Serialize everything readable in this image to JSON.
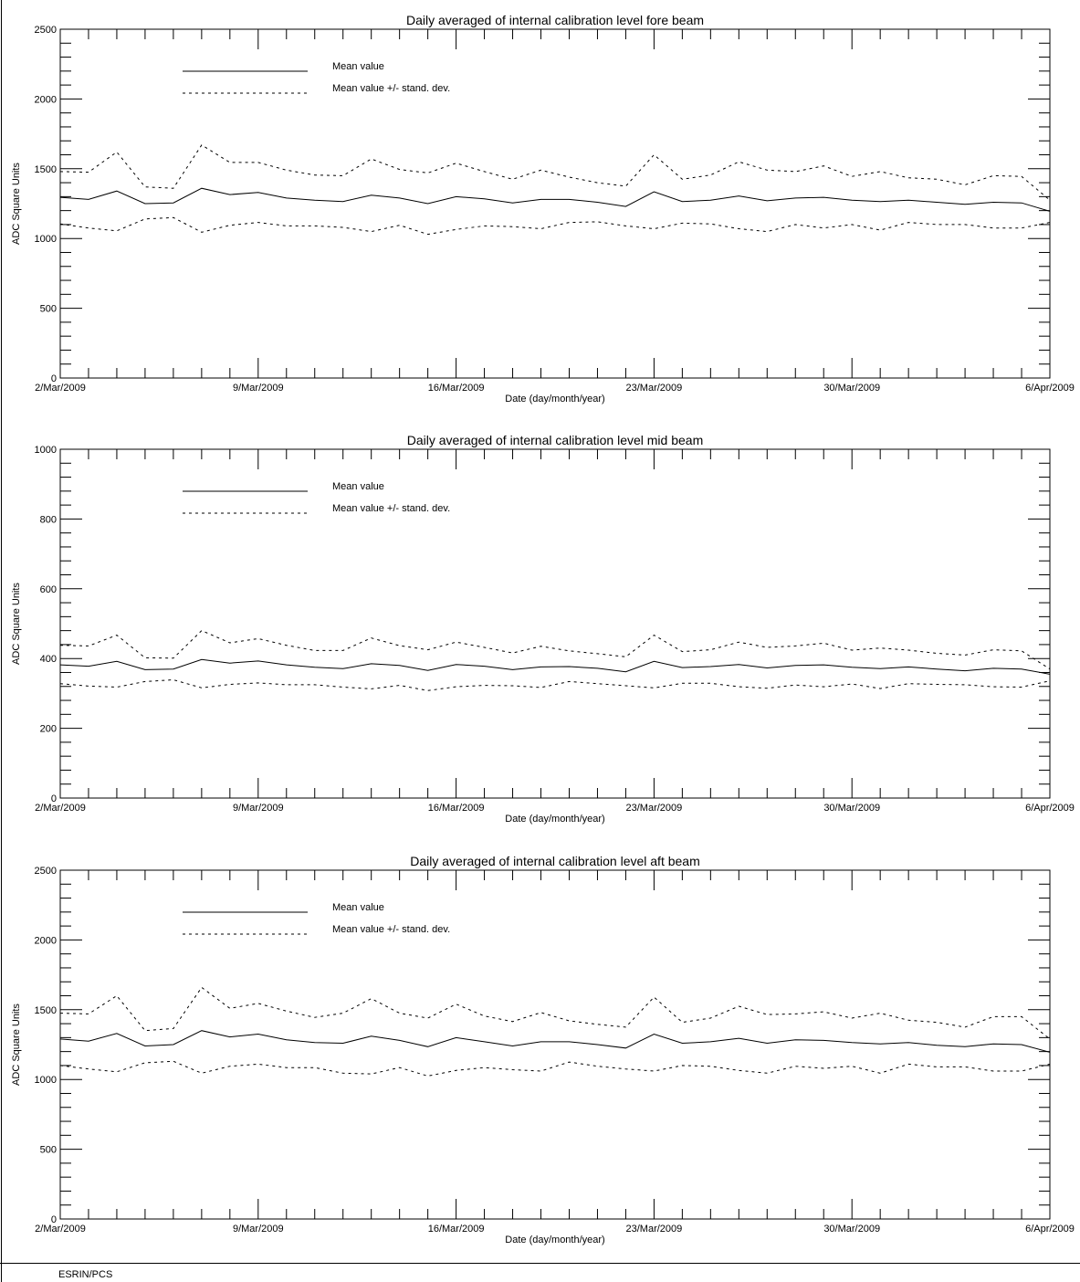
{
  "footer": {
    "label": "ESRIN/PCS"
  },
  "chart_data": [
    {
      "type": "line",
      "title": "Daily averaged of internal calibration level fore beam",
      "xlabel": "Date (day/month/year)",
      "ylabel": "ADC Square Units",
      "ylim": [
        0,
        2500
      ],
      "ytick_labels": [
        "0",
        "500",
        "1000",
        "1500",
        "2000",
        "2500"
      ],
      "xtick_labels": [
        "2/Mar/2009",
        "9/Mar/2009",
        "16/Mar/2009",
        "23/Mar/2009",
        "30/Mar/2009",
        "6/Apr/2009"
      ],
      "xlim": [
        "2009-03-02",
        "2009-04-06"
      ],
      "x": [
        "2009-03-02",
        "2009-03-03",
        "2009-03-04",
        "2009-03-05",
        "2009-03-06",
        "2009-03-07",
        "2009-03-08",
        "2009-03-09",
        "2009-03-10",
        "2009-03-11",
        "2009-03-12",
        "2009-03-13",
        "2009-03-14",
        "2009-03-15",
        "2009-03-16",
        "2009-03-17",
        "2009-03-18",
        "2009-03-19",
        "2009-03-20",
        "2009-03-21",
        "2009-03-22",
        "2009-03-23",
        "2009-03-24",
        "2009-03-25",
        "2009-03-26",
        "2009-03-27",
        "2009-03-28",
        "2009-03-29",
        "2009-03-30",
        "2009-03-31",
        "2009-04-01",
        "2009-04-02",
        "2009-04-03",
        "2009-04-04",
        "2009-04-05",
        "2009-04-06"
      ],
      "legend": {
        "position": "top-left"
      },
      "series": [
        {
          "name": "Mean value",
          "style": "solid",
          "values": [
            1295,
            1280,
            1340,
            1250,
            1255,
            1360,
            1315,
            1330,
            1290,
            1275,
            1265,
            1310,
            1290,
            1250,
            1300,
            1285,
            1255,
            1280,
            1280,
            1260,
            1230,
            1335,
            1265,
            1275,
            1305,
            1270,
            1290,
            1295,
            1275,
            1265,
            1275,
            1260,
            1245,
            1260,
            1255,
            1195
          ]
        },
        {
          "name": "Mean value +/- stand. dev.",
          "style": "dotted",
          "values": [
            1480,
            1475,
            1620,
            1370,
            1360,
            1670,
            1545,
            1545,
            1490,
            1455,
            1450,
            1570,
            1495,
            1470,
            1540,
            1480,
            1425,
            1490,
            1440,
            1400,
            1375,
            1600,
            1425,
            1455,
            1550,
            1490,
            1480,
            1520,
            1445,
            1480,
            1435,
            1425,
            1385,
            1450,
            1445,
            1275
          ]
        },
        {
          "name": "Mean value +/- stand. dev.",
          "style": "dotted",
          "values": [
            1105,
            1075,
            1055,
            1140,
            1150,
            1045,
            1095,
            1115,
            1090,
            1090,
            1080,
            1050,
            1095,
            1030,
            1065,
            1090,
            1085,
            1070,
            1115,
            1120,
            1090,
            1070,
            1110,
            1105,
            1070,
            1050,
            1100,
            1075,
            1100,
            1060,
            1115,
            1100,
            1100,
            1075,
            1075,
            1115
          ]
        }
      ]
    },
    {
      "type": "line",
      "title": "Daily averaged of internal calibration level mid beam",
      "xlabel": "Date (day/month/year)",
      "ylabel": "ADC Square Units",
      "ylim": [
        0,
        1000
      ],
      "ytick_labels": [
        "0",
        "200",
        "400",
        "600",
        "800",
        "1000"
      ],
      "xtick_labels": [
        "2/Mar/2009",
        "9/Mar/2009",
        "16/Mar/2009",
        "23/Mar/2009",
        "30/Mar/2009",
        "6/Apr/2009"
      ],
      "xlim": [
        "2009-03-02",
        "2009-04-06"
      ],
      "x": [
        "2009-03-02",
        "2009-03-03",
        "2009-03-04",
        "2009-03-05",
        "2009-03-06",
        "2009-03-07",
        "2009-03-08",
        "2009-03-09",
        "2009-03-10",
        "2009-03-11",
        "2009-03-12",
        "2009-03-13",
        "2009-03-14",
        "2009-03-15",
        "2009-03-16",
        "2009-03-17",
        "2009-03-18",
        "2009-03-19",
        "2009-03-20",
        "2009-03-21",
        "2009-03-22",
        "2009-03-23",
        "2009-03-24",
        "2009-03-25",
        "2009-03-26",
        "2009-03-27",
        "2009-03-28",
        "2009-03-29",
        "2009-03-30",
        "2009-03-31",
        "2009-04-01",
        "2009-04-02",
        "2009-04-03",
        "2009-04-04",
        "2009-04-05",
        "2009-04-06"
      ],
      "legend": {
        "position": "top-left"
      },
      "series": [
        {
          "name": "Mean value",
          "style": "solid",
          "values": [
            382,
            378,
            392,
            368,
            370,
            397,
            387,
            393,
            382,
            375,
            371,
            385,
            380,
            366,
            383,
            378,
            368,
            376,
            377,
            372,
            362,
            392,
            374,
            377,
            383,
            373,
            380,
            382,
            375,
            371,
            376,
            370,
            365,
            372,
            370,
            355
          ]
        },
        {
          "name": "Mean value +/- stand. dev.",
          "style": "dotted",
          "values": [
            438,
            436,
            467,
            402,
            401,
            480,
            445,
            457,
            438,
            423,
            423,
            459,
            437,
            425,
            447,
            432,
            416,
            435,
            422,
            414,
            405,
            467,
            420,
            425,
            447,
            432,
            436,
            444,
            424,
            430,
            424,
            415,
            410,
            425,
            422,
            370
          ]
        },
        {
          "name": "Mean value +/- stand. dev.",
          "style": "dotted",
          "values": [
            328,
            321,
            318,
            334,
            339,
            316,
            326,
            330,
            325,
            325,
            318,
            313,
            323,
            308,
            319,
            323,
            322,
            317,
            334,
            328,
            322,
            316,
            329,
            329,
            319,
            315,
            324,
            319,
            327,
            314,
            328,
            326,
            325,
            319,
            318,
            336
          ]
        }
      ]
    },
    {
      "type": "line",
      "title": "Daily averaged of internal calibration level aft beam",
      "xlabel": "Date (day/month/year)",
      "ylabel": "ADC Square Units",
      "ylim": [
        0,
        2500
      ],
      "ytick_labels": [
        "0",
        "500",
        "1000",
        "1500",
        "2000",
        "2500"
      ],
      "xtick_labels": [
        "2/Mar/2009",
        "9/Mar/2009",
        "16/Mar/2009",
        "23/Mar/2009",
        "30/Mar/2009",
        "6/Apr/2009"
      ],
      "xlim": [
        "2009-03-02",
        "2009-04-06"
      ],
      "x": [
        "2009-03-02",
        "2009-03-03",
        "2009-03-04",
        "2009-03-05",
        "2009-03-06",
        "2009-03-07",
        "2009-03-08",
        "2009-03-09",
        "2009-03-10",
        "2009-03-11",
        "2009-03-12",
        "2009-03-13",
        "2009-03-14",
        "2009-03-15",
        "2009-03-16",
        "2009-03-17",
        "2009-03-18",
        "2009-03-19",
        "2009-03-20",
        "2009-03-21",
        "2009-03-22",
        "2009-03-23",
        "2009-03-24",
        "2009-03-25",
        "2009-03-26",
        "2009-03-27",
        "2009-03-28",
        "2009-03-29",
        "2009-03-30",
        "2009-03-31",
        "2009-04-01",
        "2009-04-02",
        "2009-04-03",
        "2009-04-04",
        "2009-04-05",
        "2009-04-06"
      ],
      "legend": {
        "position": "top-left"
      },
      "series": [
        {
          "name": "Mean value",
          "style": "solid",
          "values": [
            1290,
            1275,
            1330,
            1240,
            1250,
            1350,
            1305,
            1325,
            1285,
            1265,
            1260,
            1310,
            1280,
            1235,
            1300,
            1270,
            1240,
            1270,
            1270,
            1250,
            1225,
            1325,
            1260,
            1270,
            1295,
            1260,
            1285,
            1280,
            1265,
            1255,
            1265,
            1245,
            1235,
            1255,
            1250,
            1195
          ]
        },
        {
          "name": "Mean value +/- stand. dev.",
          "style": "dotted",
          "values": [
            1475,
            1470,
            1600,
            1350,
            1365,
            1660,
            1510,
            1545,
            1490,
            1445,
            1475,
            1580,
            1475,
            1440,
            1540,
            1455,
            1415,
            1480,
            1420,
            1395,
            1375,
            1590,
            1410,
            1440,
            1525,
            1465,
            1470,
            1485,
            1440,
            1475,
            1425,
            1410,
            1375,
            1450,
            1450,
            1290
          ]
        },
        {
          "name": "Mean value +/- stand. dev.",
          "style": "dotted",
          "values": [
            1100,
            1075,
            1055,
            1120,
            1130,
            1045,
            1095,
            1110,
            1085,
            1085,
            1045,
            1040,
            1085,
            1025,
            1065,
            1085,
            1070,
            1060,
            1125,
            1095,
            1075,
            1060,
            1100,
            1095,
            1065,
            1045,
            1095,
            1080,
            1095,
            1045,
            1110,
            1090,
            1090,
            1060,
            1060,
            1110
          ]
        }
      ]
    }
  ]
}
